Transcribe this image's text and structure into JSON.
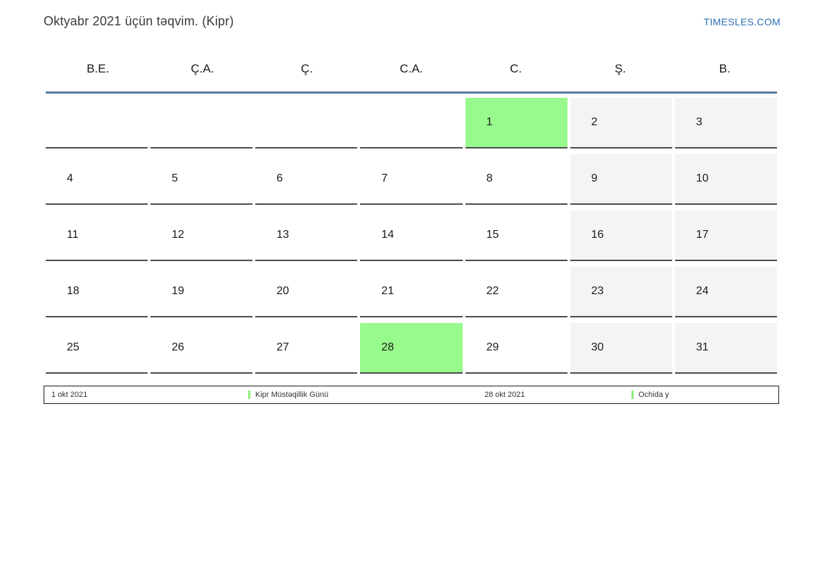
{
  "header": {
    "title": "Oktyabr 2021 üçün təqvim. (Kipr)",
    "logo": "TIMESLES.COM"
  },
  "calendar": {
    "weekdays": [
      "B.E.",
      "Ç.A.",
      "Ç.",
      "C.A.",
      "C.",
      "Ş.",
      "B."
    ],
    "weeks": [
      [
        {
          "day": "",
          "type": "empty"
        },
        {
          "day": "",
          "type": "empty"
        },
        {
          "day": "",
          "type": "empty"
        },
        {
          "day": "",
          "type": "empty"
        },
        {
          "day": "1",
          "type": "holiday"
        },
        {
          "day": "2",
          "type": "weekend"
        },
        {
          "day": "3",
          "type": "weekend"
        }
      ],
      [
        {
          "day": "4",
          "type": "normal"
        },
        {
          "day": "5",
          "type": "normal"
        },
        {
          "day": "6",
          "type": "normal"
        },
        {
          "day": "7",
          "type": "normal"
        },
        {
          "day": "8",
          "type": "normal"
        },
        {
          "day": "9",
          "type": "weekend"
        },
        {
          "day": "10",
          "type": "weekend"
        }
      ],
      [
        {
          "day": "11",
          "type": "normal"
        },
        {
          "day": "12",
          "type": "normal"
        },
        {
          "day": "13",
          "type": "normal"
        },
        {
          "day": "14",
          "type": "normal"
        },
        {
          "day": "15",
          "type": "normal"
        },
        {
          "day": "16",
          "type": "weekend"
        },
        {
          "day": "17",
          "type": "weekend"
        }
      ],
      [
        {
          "day": "18",
          "type": "normal"
        },
        {
          "day": "19",
          "type": "normal"
        },
        {
          "day": "20",
          "type": "normal"
        },
        {
          "day": "21",
          "type": "normal"
        },
        {
          "day": "22",
          "type": "normal"
        },
        {
          "day": "23",
          "type": "weekend"
        },
        {
          "day": "24",
          "type": "weekend"
        }
      ],
      [
        {
          "day": "25",
          "type": "normal"
        },
        {
          "day": "26",
          "type": "normal"
        },
        {
          "day": "27",
          "type": "normal"
        },
        {
          "day": "28",
          "type": "holiday"
        },
        {
          "day": "29",
          "type": "normal"
        },
        {
          "day": "30",
          "type": "weekend"
        },
        {
          "day": "31",
          "type": "weekend"
        }
      ]
    ]
  },
  "legend": {
    "items": [
      {
        "date": "1 okt 2021",
        "label": "Kipr Müstəqillik Günü"
      },
      {
        "date": "28 okt 2021",
        "label": "Ochida y"
      }
    ]
  },
  "colors": {
    "holiday": "#98f98c",
    "weekend": "#f4f4f4",
    "divider": "#5578a0",
    "logo": "#2e6fb3",
    "cellBorder": "#4a4a4a",
    "marker": "#8ded78"
  }
}
